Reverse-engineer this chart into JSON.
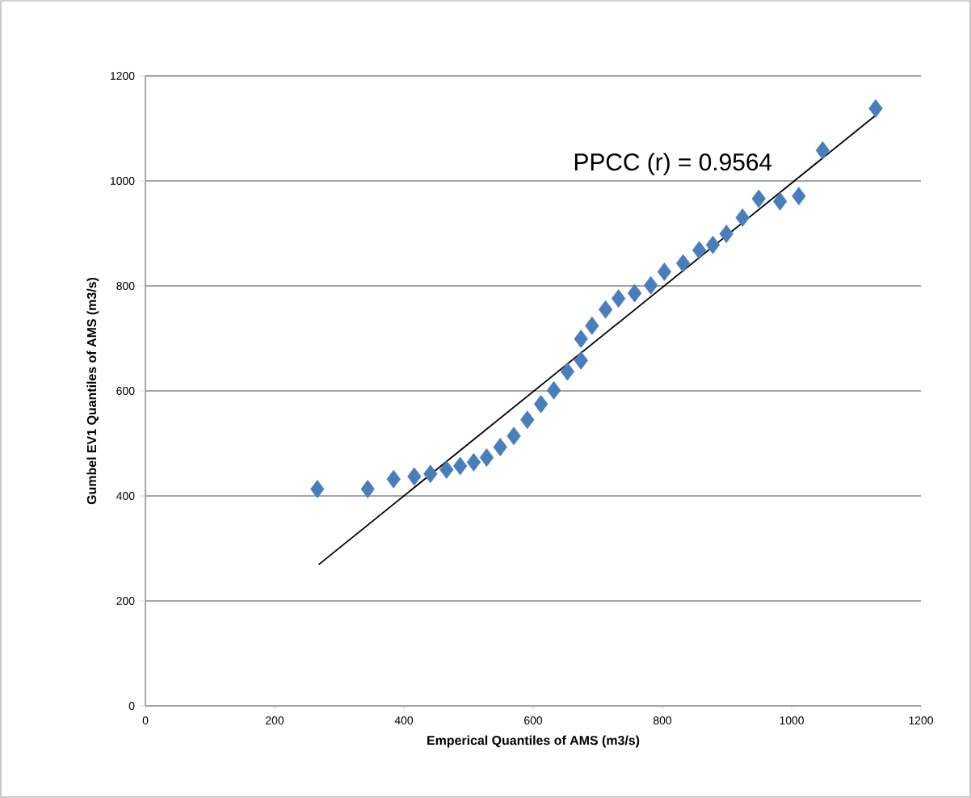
{
  "chart_data": {
    "type": "scatter",
    "xlabel": "Emperical Quantiles of AMS (m3/s)",
    "ylabel": "Gumbel EV1 Quantiles of AMS (m3/s)",
    "annotations": [
      "PPCC (r) = 0.9564"
    ],
    "xlim": [
      0,
      1200
    ],
    "xticks": [
      0,
      200,
      400,
      600,
      800,
      1000,
      1200
    ],
    "ylim": [
      0,
      1200
    ],
    "yticks": [
      0,
      200,
      400,
      600,
      800,
      1000,
      1200
    ],
    "grid": "y",
    "marker": "diamond",
    "series": [
      {
        "color": "#4a7ebb",
        "x": [
          266,
          344,
          384,
          416,
          441,
          466,
          487,
          508,
          528,
          549,
          570,
          591,
          612,
          632,
          653,
          674,
          674,
          691,
          712,
          732,
          757,
          782,
          803,
          832,
          857,
          878,
          899,
          924,
          949,
          982,
          1011,
          1048,
          1130
        ],
        "values": [
          413,
          413,
          432,
          437,
          442,
          450,
          457,
          464,
          473,
          493,
          514,
          545,
          575,
          601,
          637,
          658,
          699,
          724,
          755,
          776,
          786,
          801,
          827,
          843,
          868,
          878,
          899,
          930,
          966,
          961,
          971,
          1058,
          1138
        ]
      },
      {
        "type": "line",
        "marker": "none",
        "color": "#000000",
        "x": [
          268,
          1130
        ],
        "values": [
          269,
          1125
        ]
      }
    ]
  }
}
